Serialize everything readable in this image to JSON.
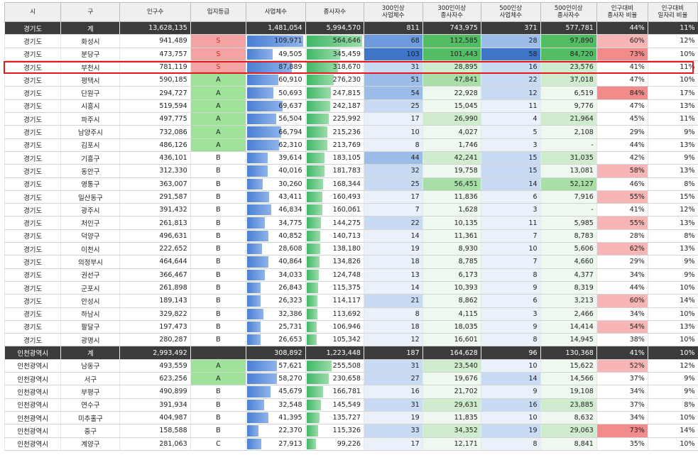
{
  "headers": [
    "시",
    "구",
    "인구수",
    "입지등급",
    "사업체수",
    "종사자수",
    "300인상\n사업체수",
    "300인이상\n종사자수",
    "500인상\n사업체수",
    "500인이상\n종사자수",
    "인구대비\n종사자 비율",
    "인구대비\n일자리 비율"
  ],
  "grade_colors": {
    "S": "#f4a3a3",
    "A": "#9fe39a",
    "B": "#ffffff",
    "C": "#ffffff"
  },
  "rows": [
    [
      "경기도",
      "계",
      "13,628,135",
      "",
      "1,481,054",
      "5,994,570",
      "811",
      "743,975",
      "371",
      "577,781",
      "44%",
      "11%"
    ],
    [
      "경기도",
      "화성시",
      "941,489",
      "S",
      "109,971",
      "564,646",
      "68",
      "112,585",
      "28",
      "97,890",
      "60%",
      "12%"
    ],
    [
      "경기도",
      "분당구",
      "473,757",
      "S",
      "49,505",
      "345,459",
      "103",
      "101,443",
      "58",
      "84,720",
      "73%",
      "10%"
    ],
    [
      "경기도",
      "부천시",
      "781,119",
      "S",
      "87,889",
      "318,670",
      "31",
      "28,895",
      "16",
      "23,576",
      "41%",
      "11%"
    ],
    [
      "경기도",
      "평택시",
      "590,185",
      "A",
      "60,910",
      "276,230",
      "51",
      "47,841",
      "22",
      "37,018",
      "47%",
      "10%"
    ],
    [
      "경기도",
      "단원구",
      "294,727",
      "A",
      "50,693",
      "247,815",
      "54",
      "22,928",
      "12",
      "6,519",
      "84%",
      "17%"
    ],
    [
      "경기도",
      "시흥시",
      "519,594",
      "A",
      "69,637",
      "242,187",
      "25",
      "15,045",
      "11",
      "9,776",
      "47%",
      "13%"
    ],
    [
      "경기도",
      "파주시",
      "497,775",
      "A",
      "56,504",
      "225,992",
      "17",
      "26,990",
      "4",
      "21,964",
      "45%",
      "11%"
    ],
    [
      "경기도",
      "남양주시",
      "732,086",
      "A",
      "66,794",
      "215,236",
      "10",
      "4,027",
      "5",
      "2,108",
      "29%",
      "9%"
    ],
    [
      "경기도",
      "김포시",
      "486,126",
      "A",
      "62,310",
      "213,769",
      "8",
      "1,746",
      "3",
      "-",
      "44%",
      "13%"
    ],
    [
      "경기도",
      "기흥구",
      "436,101",
      "B",
      "39,614",
      "183,105",
      "44",
      "42,241",
      "15",
      "31,035",
      "42%",
      "9%"
    ],
    [
      "경기도",
      "동안구",
      "312,330",
      "B",
      "40,016",
      "181,783",
      "32",
      "19,758",
      "15",
      "13,081",
      "58%",
      "13%"
    ],
    [
      "경기도",
      "영통구",
      "363,007",
      "B",
      "30,260",
      "168,344",
      "25",
      "56,451",
      "14",
      "52,127",
      "46%",
      "8%"
    ],
    [
      "경기도",
      "일산동구",
      "291,587",
      "B",
      "43,411",
      "160,493",
      "17",
      "11,836",
      "6",
      "7,916",
      "55%",
      "15%"
    ],
    [
      "경기도",
      "광주시",
      "391,432",
      "B",
      "46,834",
      "160,061",
      "7",
      "1,628",
      "3",
      "-",
      "41%",
      "12%"
    ],
    [
      "경기도",
      "처인구",
      "261,813",
      "B",
      "34,775",
      "144,275",
      "22",
      "10,135",
      "11",
      "5,985",
      "55%",
      "13%"
    ],
    [
      "경기도",
      "덕양구",
      "496,631",
      "B",
      "40,852",
      "140,713",
      "14",
      "11,361",
      "7",
      "8,783",
      "28%",
      "8%"
    ],
    [
      "경기도",
      "이천시",
      "222,652",
      "B",
      "28,608",
      "138,180",
      "19",
      "8,930",
      "10",
      "5,606",
      "62%",
      "13%"
    ],
    [
      "경기도",
      "의정부시",
      "464,644",
      "B",
      "40,864",
      "134,826",
      "18",
      "8,785",
      "7",
      "4,660",
      "29%",
      "9%"
    ],
    [
      "경기도",
      "권선구",
      "366,467",
      "B",
      "34,033",
      "124,748",
      "13",
      "6,173",
      "8",
      "4,377",
      "34%",
      "9%"
    ],
    [
      "경기도",
      "군포시",
      "261,898",
      "B",
      "26,843",
      "115,375",
      "14",
      "10,393",
      "9",
      "8,319",
      "44%",
      "10%"
    ],
    [
      "경기도",
      "안성시",
      "189,143",
      "B",
      "26,323",
      "114,117",
      "21",
      "8,862",
      "6",
      "3,213",
      "60%",
      "14%"
    ],
    [
      "경기도",
      "하남시",
      "329,822",
      "B",
      "32,386",
      "113,692",
      "8",
      "4,115",
      "3",
      "2,466",
      "34%",
      "10%"
    ],
    [
      "경기도",
      "팔달구",
      "197,473",
      "B",
      "25,731",
      "106,946",
      "18",
      "18,035",
      "9",
      "14,414",
      "54%",
      "13%"
    ],
    [
      "경기도",
      "광명시",
      "280,287",
      "B",
      "26,653",
      "105,342",
      "12",
      "16,601",
      "8",
      "14,945",
      "38%",
      "10%"
    ],
    [
      "인천광역시",
      "계",
      "2,993,492",
      "",
      "308,892",
      "1,223,448",
      "187",
      "164,628",
      "96",
      "130,368",
      "41%",
      "10%"
    ],
    [
      "인천광역시",
      "남동구",
      "493,559",
      "A",
      "57,621",
      "255,508",
      "31",
      "23,540",
      "10",
      "15,622",
      "52%",
      "12%"
    ],
    [
      "인천광역시",
      "서구",
      "623,256",
      "A",
      "58,270",
      "230,658",
      "27",
      "19,676",
      "14",
      "14,566",
      "37%",
      "9%"
    ],
    [
      "인천광역시",
      "부평구",
      "490,899",
      "B",
      "45,679",
      "166,781",
      "16",
      "21,702",
      "9",
      "19,108",
      "34%",
      "9%"
    ],
    [
      "인천광역시",
      "연수구",
      "391,934",
      "B",
      "32,548",
      "145,549",
      "31",
      "29,631",
      "16",
      "23,885",
      "37%",
      "8%"
    ],
    [
      "인천광역시",
      "미추홀구",
      "404,987",
      "B",
      "41,395",
      "135,727",
      "19",
      "11,835",
      "10",
      "8,632",
      "34%",
      "10%"
    ],
    [
      "인천광역시",
      "중구",
      "158,588",
      "B",
      "22,370",
      "115,326",
      "33",
      "34,352",
      "19",
      "29,063",
      "73%",
      "14%"
    ],
    [
      "인천광역시",
      "계양구",
      "281,063",
      "C",
      "27,913",
      "99,226",
      "17",
      "12,171",
      "8",
      "8,841",
      "35%",
      "10%"
    ]
  ]
}
